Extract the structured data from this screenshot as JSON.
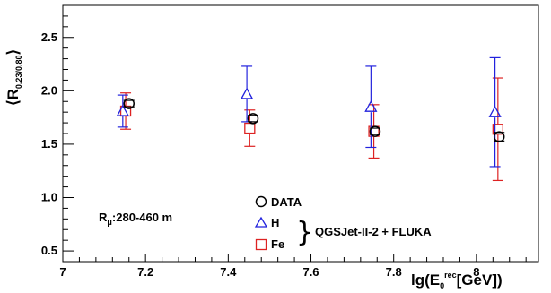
{
  "chart_data": {
    "type": "scatter",
    "title": "",
    "xlabel": {
      "base": "lg(E",
      "sub": "0",
      "sup": "rec",
      "rest": "[GeV])"
    },
    "ylabel": {
      "open": "⟨R",
      "sub": "0.23/0.80",
      "close": "⟩"
    },
    "xlim": [
      7.0,
      8.15
    ],
    "ylim": [
      0.4,
      2.8
    ],
    "xticks": [
      7.0,
      7.2,
      7.4,
      7.6,
      7.8,
      8.0
    ],
    "xtick_labels": [
      "7",
      "7.2",
      "7.4",
      "7.6",
      "7.8",
      "8"
    ],
    "yticks": [
      0.5,
      1.0,
      1.5,
      2.0,
      2.5
    ],
    "ytick_labels": [
      "0.5",
      "1.0",
      "1.5",
      "2.0",
      "2.5"
    ],
    "grid": false,
    "legend_position": "bottom-center",
    "series": [
      {
        "name": "DATA",
        "marker": "circle",
        "color": "#000000",
        "points": [
          {
            "x": 7.16,
            "y": 1.88,
            "err": 0.03
          },
          {
            "x": 7.46,
            "y": 1.74,
            "err": 0.03
          },
          {
            "x": 7.755,
            "y": 1.62,
            "err": 0.03
          },
          {
            "x": 8.055,
            "y": 1.57,
            "err": 0.04
          }
        ]
      },
      {
        "name": "H",
        "marker": "triangle",
        "color": "#2222dd",
        "points": [
          {
            "x": 7.145,
            "y": 1.81,
            "err": 0.15
          },
          {
            "x": 7.445,
            "y": 1.97,
            "err": 0.26
          },
          {
            "x": 7.745,
            "y": 1.85,
            "err": 0.38
          },
          {
            "x": 8.045,
            "y": 1.8,
            "err": 0.51
          }
        ]
      },
      {
        "name": "Fe",
        "marker": "square",
        "color": "#dd2222",
        "points": [
          {
            "x": 7.152,
            "y": 1.81,
            "err": 0.17
          },
          {
            "x": 7.452,
            "y": 1.65,
            "err": 0.17
          },
          {
            "x": 7.752,
            "y": 1.62,
            "err": 0.25
          },
          {
            "x": 8.052,
            "y": 1.64,
            "err": 0.48
          }
        ]
      }
    ],
    "legend": {
      "entries": [
        "DATA",
        "H",
        "Fe"
      ],
      "group_label": "QGSJet-II-2 + FLUKA"
    },
    "annotation": {
      "prefix": "R",
      "sub": "μ",
      "text": ":280-460 m"
    }
  }
}
